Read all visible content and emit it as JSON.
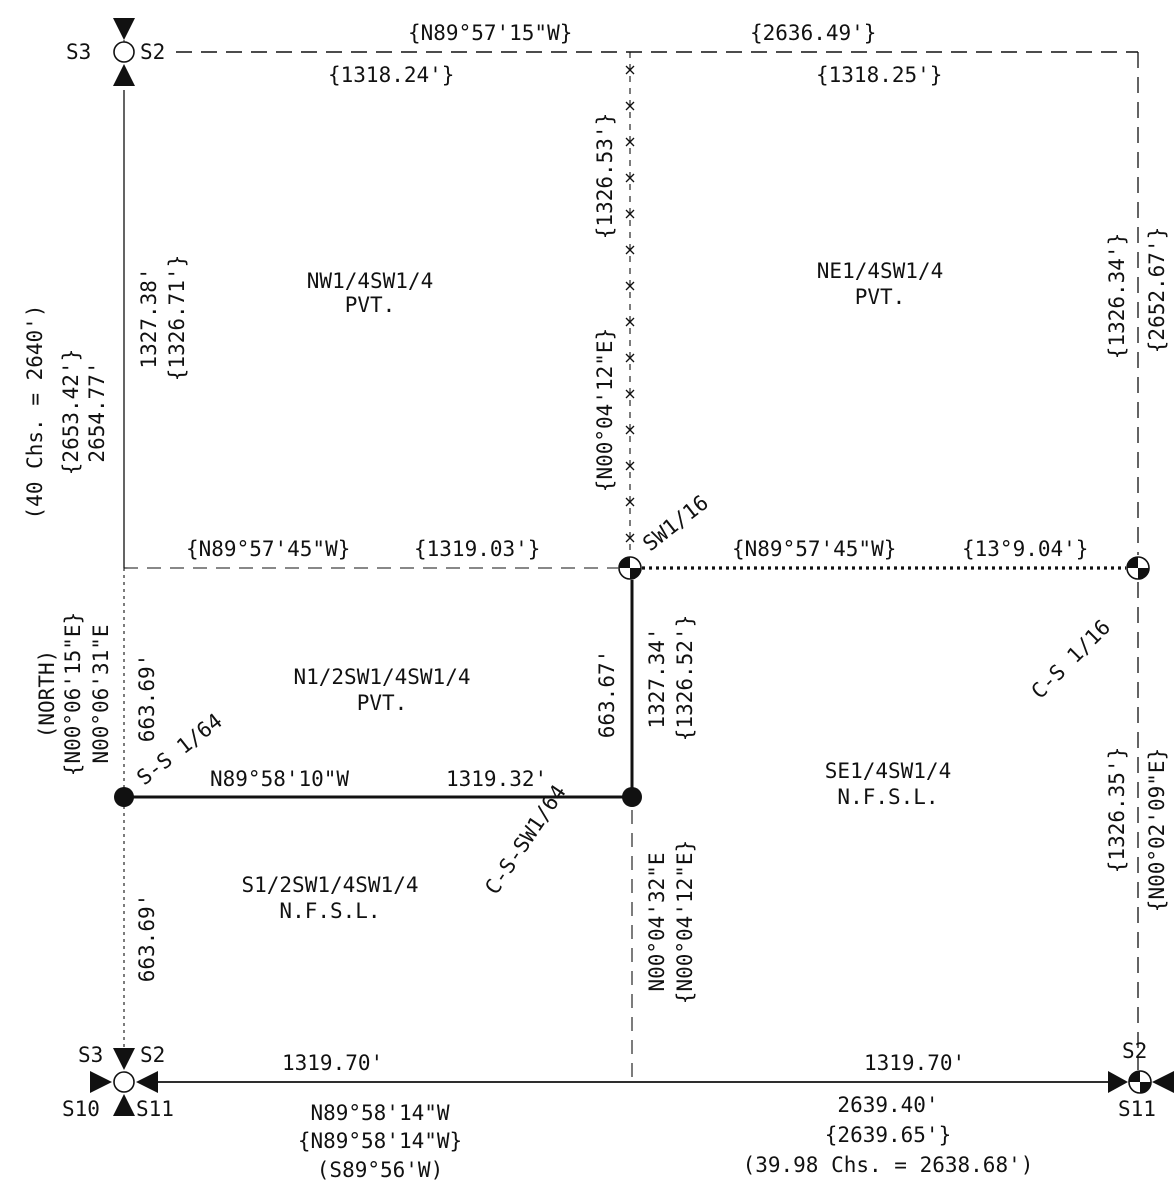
{
  "colors": {
    "ink": "#111111",
    "paper": "#ffffff"
  },
  "corners": {
    "nw": {
      "left": "S3",
      "right": "S2"
    },
    "sw": {
      "top_left": "S3",
      "top_right": "S2",
      "bottom_left": "S10",
      "bottom_right": "S11"
    },
    "se": {
      "top": "S2",
      "bottom": "S11"
    }
  },
  "north_line": {
    "bearing": "{N89°57'15\"W}",
    "total": "{2636.49'}",
    "west_half": "{1318.24'}",
    "east_half": "{1318.25'}"
  },
  "west_line": {
    "chains": "(40 Chs. = 2640')",
    "record_total": "{2653.42'}",
    "measured_total": "2654.77'",
    "upper_measured": "1327.38'",
    "upper_record": "{1326.71'}",
    "basis": "(NORTH)",
    "record_bearing": "{N00°06'15\"E}",
    "measured_bearing": "N00°06'31\"E",
    "segment_upper": "663.69'",
    "segment_lower": "663.69'"
  },
  "center_line": {
    "upper_record_distance": "{1326.53'}",
    "upper_record_bearing": "{N00°04'12\"E}",
    "lower_measured": "1327.34'",
    "lower_record": "{1326.52'}",
    "segment": "663.67'",
    "measured_bearing": "N00°04'32\"E",
    "record_bearing": "{N00°04'12\"E}"
  },
  "sixteenth_line": {
    "west_bearing": "{N89°57'45\"W}",
    "west_distance": "{1319.03'}",
    "east_bearing": "{N89°57'45\"W}",
    "east_distance": "{13°9.04'}"
  },
  "sixty_fourth_line": {
    "bearing": "N89°58'10\"W",
    "distance": "1319.32'"
  },
  "east_line": {
    "upper_record": "{1326.34'}",
    "record_total": "{2652.67'}",
    "lower_record": "{1326.35'}",
    "record_bearing": "{N00°02'09\"E}"
  },
  "south_line": {
    "west_distance": "1319.70'",
    "east_distance": "1319.70'",
    "measured_bearing": "N89°58'14\"W",
    "record_bearing": "{N89°58'14\"W}",
    "original_bearing": "(S89°56'W)",
    "measured_total": "2639.40'",
    "record_total": "{2639.65'}",
    "chains": "(39.98 Chs. = 2638.68')"
  },
  "monuments": {
    "sw16": "SW1/16",
    "cs16": "C-S 1/16",
    "ss64": "S-S 1/64",
    "cssw64": "C-S-SW1/64"
  },
  "parcels": {
    "nw": {
      "name": "NW1/4SW1/4",
      "owner": "PVT."
    },
    "ne": {
      "name": "NE1/4SW1/4",
      "owner": "PVT."
    },
    "n_half": {
      "name": "N1/2SW1/4SW1/4",
      "owner": "PVT."
    },
    "se": {
      "name": "SE1/4SW1/4",
      "owner": "N.F.S.L."
    },
    "s_half": {
      "name": "S1/2SW1/4SW1/4",
      "owner": "N.F.S.L."
    }
  }
}
